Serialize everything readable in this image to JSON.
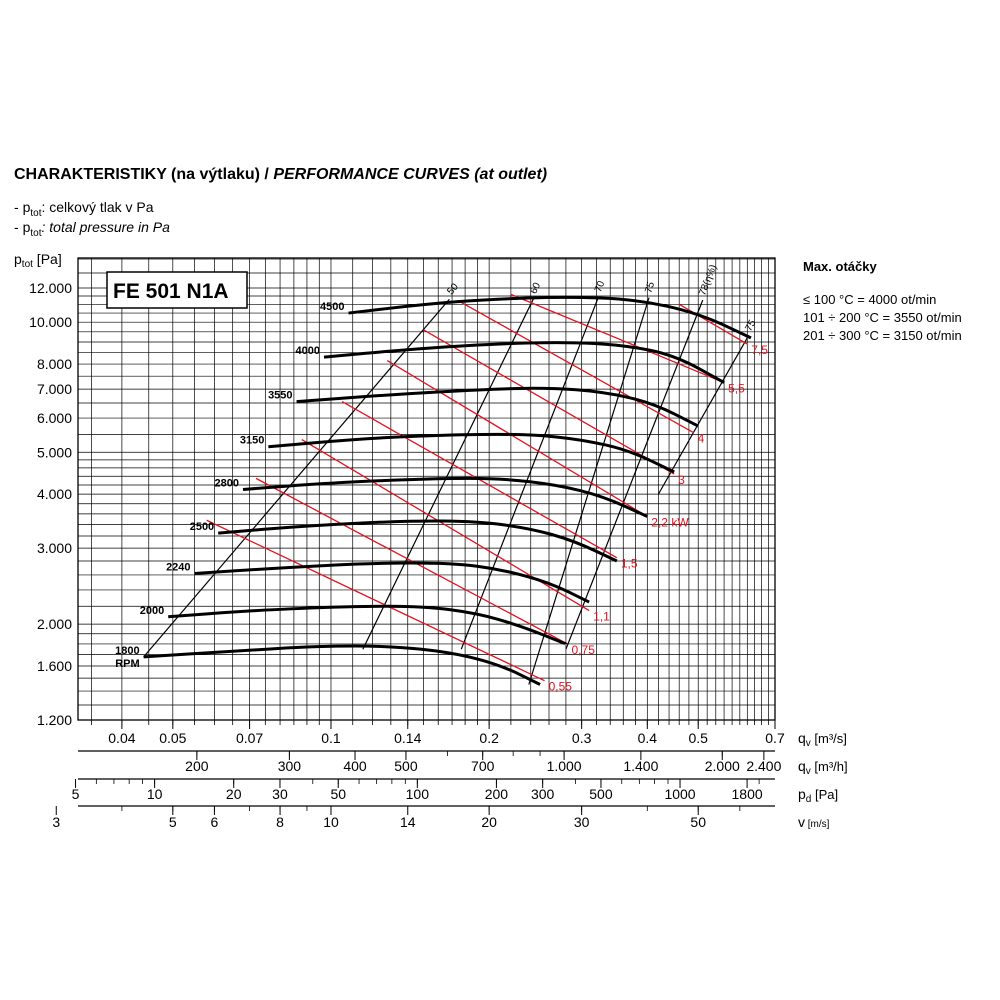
{
  "header": {
    "title_cz": "CHARAKTERISTIKY (na výtlaku) /",
    "title_en": "PERFORMANCE CURVES (at outlet)",
    "ptot_symbol": "p",
    "ptot_sub": "tot",
    "legend_cz": ": celkový tlak v Pa",
    "legend_en": ": total pressure in Pa",
    "legend_dash": "- "
  },
  "model_label": "FE 501 N1A",
  "side_panel": {
    "title": "Max. otáčky",
    "lines": [
      "≤ 100 °C = 4000 ot/min",
      "101 ÷ 200 °C = 3550 ot/min",
      "201 ÷ 300 °C = 3150 ot/min"
    ]
  },
  "colors": {
    "grid": "#000000",
    "curve": "#000000",
    "power": "#e8101e",
    "power_text": "#e8101e"
  },
  "chart_data": {
    "type": "line",
    "yscale": "log",
    "ylabel_sym": "p",
    "ylabel_sub": "tot",
    "ylabel_unit": " [Pa]",
    "ylim": [
      1200,
      12000
    ],
    "y_ticks": [
      {
        "v": 1200,
        "l": "1.200"
      },
      {
        "v": 1600,
        "l": "1.600"
      },
      {
        "v": 2000,
        "l": "2.000"
      },
      {
        "v": 3000,
        "l": "3.000"
      },
      {
        "v": 4000,
        "l": "4.000"
      },
      {
        "v": 5000,
        "l": "5.000"
      },
      {
        "v": 6000,
        "l": "6.000"
      },
      {
        "v": 7000,
        "l": "7.000"
      },
      {
        "v": 8000,
        "l": "8.000"
      },
      {
        "v": 10000,
        "l": "10.000"
      },
      {
        "v": 12000,
        "l": "12.000"
      }
    ],
    "xscale": "log",
    "xlim": [
      0.033,
      0.7
    ],
    "x_axes": [
      {
        "label_sym": "q",
        "label_sub": "v",
        "unit": " [m³/s]",
        "ticks": [
          {
            "v": 0.04,
            "l": "0.04"
          },
          {
            "v": 0.05,
            "l": "0.05"
          },
          {
            "v": 0.07,
            "l": "0.07"
          },
          {
            "v": 0.1,
            "l": "0.1"
          },
          {
            "v": 0.14,
            "l": "0.14"
          },
          {
            "v": 0.2,
            "l": "0.2"
          },
          {
            "v": 0.3,
            "l": "0.3"
          },
          {
            "v": 0.4,
            "l": "0.4"
          },
          {
            "v": 0.5,
            "l": "0.5"
          },
          {
            "v": 0.7,
            "l": "0.7"
          }
        ]
      },
      {
        "label_sym": "q",
        "label_sub": "v",
        "unit": " [m³/h]",
        "ticks": [
          {
            "v": 200,
            "l": "200"
          },
          {
            "v": 300,
            "l": "300"
          },
          {
            "v": 400,
            "l": "400"
          },
          {
            "v": 500,
            "l": "500"
          },
          {
            "v": 700,
            "l": "700"
          },
          {
            "v": 1000,
            "l": "1.000"
          },
          {
            "v": 1400,
            "l": "1.400"
          },
          {
            "v": 2000,
            "l": "2.000"
          },
          {
            "v": 2400,
            "l": "2.400"
          }
        ]
      },
      {
        "label_sym": "p",
        "label_sub": "d",
        "unit": " [Pa]",
        "ticks": [
          {
            "v": 5,
            "l": "5"
          },
          {
            "v": 10,
            "l": "10"
          },
          {
            "v": 20,
            "l": "20"
          },
          {
            "v": 30,
            "l": "30"
          },
          {
            "v": 50,
            "l": "50"
          },
          {
            "v": 100,
            "l": "100"
          },
          {
            "v": 200,
            "l": "200"
          },
          {
            "v": 300,
            "l": "300"
          },
          {
            "v": 500,
            "l": "500"
          },
          {
            "v": 1000,
            "l": "1000"
          },
          {
            "v": 1800,
            "l": "1800"
          }
        ]
      },
      {
        "label_sym": "v",
        "label_sub": "",
        "unit": " [m/s]",
        "ticks": [
          {
            "v": 3,
            "l": "3"
          },
          {
            "v": 5,
            "l": "5"
          },
          {
            "v": 6,
            "l": "6"
          },
          {
            "v": 8,
            "l": "8"
          },
          {
            "v": 10,
            "l": "10"
          },
          {
            "v": 14,
            "l": "14"
          },
          {
            "v": 20,
            "l": "20"
          },
          {
            "v": 30,
            "l": "30"
          },
          {
            "v": 50,
            "l": "50"
          }
        ]
      }
    ],
    "series": [
      {
        "name": "4500",
        "points": [
          [
            0.108,
            10500
          ],
          [
            0.15,
            11000
          ],
          [
            0.2,
            11300
          ],
          [
            0.28,
            11450
          ],
          [
            0.38,
            11300
          ],
          [
            0.5,
            10500
          ],
          [
            0.63,
            9200
          ]
        ]
      },
      {
        "name": "4000",
        "points": [
          [
            0.097,
            8300
          ],
          [
            0.14,
            8650
          ],
          [
            0.2,
            8900
          ],
          [
            0.28,
            9000
          ],
          [
            0.36,
            8850
          ],
          [
            0.45,
            8400
          ],
          [
            0.56,
            7250
          ]
        ]
      },
      {
        "name": "3550",
        "points": [
          [
            0.086,
            6550
          ],
          [
            0.13,
            6800
          ],
          [
            0.2,
            7000
          ],
          [
            0.26,
            7050
          ],
          [
            0.33,
            6900
          ],
          [
            0.41,
            6500
          ],
          [
            0.5,
            5750
          ]
        ]
      },
      {
        "name": "3150",
        "points": [
          [
            0.076,
            5150
          ],
          [
            0.12,
            5400
          ],
          [
            0.18,
            5500
          ],
          [
            0.24,
            5500
          ],
          [
            0.3,
            5350
          ],
          [
            0.37,
            5050
          ],
          [
            0.45,
            4500
          ]
        ]
      },
      {
        "name": "2800",
        "points": [
          [
            0.068,
            4100
          ],
          [
            0.1,
            4250
          ],
          [
            0.16,
            4350
          ],
          [
            0.21,
            4350
          ],
          [
            0.27,
            4200
          ],
          [
            0.33,
            3950
          ],
          [
            0.4,
            3550
          ]
        ]
      },
      {
        "name": "2500",
        "points": [
          [
            0.061,
            3250
          ],
          [
            0.09,
            3380
          ],
          [
            0.14,
            3470
          ],
          [
            0.19,
            3460
          ],
          [
            0.24,
            3330
          ],
          [
            0.29,
            3120
          ],
          [
            0.35,
            2800
          ]
        ]
      },
      {
        "name": "2240",
        "points": [
          [
            0.055,
            2620
          ],
          [
            0.08,
            2700
          ],
          [
            0.12,
            2770
          ],
          [
            0.17,
            2770
          ],
          [
            0.21,
            2680
          ],
          [
            0.26,
            2500
          ],
          [
            0.31,
            2250
          ]
        ]
      },
      {
        "name": "2000",
        "points": [
          [
            0.049,
            2080
          ],
          [
            0.07,
            2150
          ],
          [
            0.11,
            2200
          ],
          [
            0.15,
            2200
          ],
          [
            0.19,
            2120
          ],
          [
            0.23,
            1980
          ],
          [
            0.28,
            1800
          ]
        ]
      },
      {
        "name": "1800",
        "points": [
          [
            0.044,
            1680
          ],
          [
            0.064,
            1730
          ],
          [
            0.095,
            1780
          ],
          [
            0.13,
            1780
          ],
          [
            0.17,
            1720
          ],
          [
            0.21,
            1610
          ],
          [
            0.25,
            1450
          ]
        ]
      }
    ],
    "series_suffix": {
      "name": "1800",
      "extra": "RPM"
    },
    "efficiency_lines": [
      {
        "name": "50",
        "p1": [
          0.044,
          1680
        ],
        "p2": [
          0.168,
          11300
        ]
      },
      {
        "name": "60",
        "p1": [
          0.115,
          1750
        ],
        "p2": [
          0.243,
          11350
        ]
      },
      {
        "name": "70",
        "p1": [
          0.177,
          1750
        ],
        "p2": [
          0.323,
          11450
        ]
      },
      {
        "name": "75",
        "p1": [
          0.238,
          1450
        ],
        "p2": [
          0.403,
          11400
        ]
      },
      {
        "name": "78(η%)",
        "p1": [
          0.28,
          1750
        ],
        "p2": [
          0.51,
          11250
        ]
      },
      {
        "name": "75",
        "p1": [
          0.42,
          4000
        ],
        "p2": [
          0.623,
          9300
        ]
      }
    ],
    "power_lines": [
      {
        "name": "0,55",
        "p1": [
          0.058,
          3480
        ],
        "p2": [
          0.255,
          1480
        ]
      },
      {
        "name": "0,75",
        "p1": [
          0.072,
          4350
        ],
        "p2": [
          0.282,
          1800
        ]
      },
      {
        "name": "1,1",
        "p1": [
          0.088,
          5350
        ],
        "p2": [
          0.31,
          2150
        ]
      },
      {
        "name": "1,5",
        "p1": [
          0.105,
          6550
        ],
        "p2": [
          0.35,
          2850
        ]
      },
      {
        "name": "2,2 kW",
        "p1": [
          0.128,
          8150
        ],
        "p2": [
          0.4,
          3550
        ]
      },
      {
        "name": "3",
        "p1": [
          0.15,
          9600
        ],
        "p2": [
          0.45,
          4450
        ]
      },
      {
        "name": "4",
        "p1": [
          0.175,
          11200
        ],
        "p2": [
          0.49,
          5550
        ]
      },
      {
        "name": "5,5",
        "p1": [
          0.22,
          11600
        ],
        "p2": [
          0.56,
          7250
        ]
      },
      {
        "name": "7,5",
        "p1": [
          0.46,
          11000
        ],
        "p2": [
          0.62,
          8900
        ]
      }
    ]
  }
}
